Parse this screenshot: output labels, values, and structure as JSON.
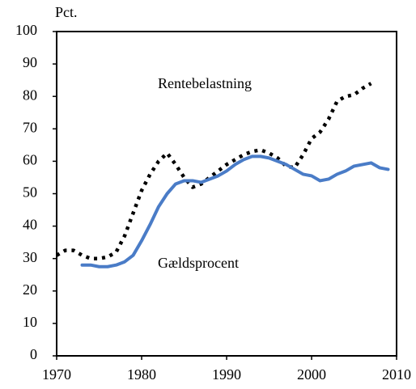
{
  "chart_data": {
    "type": "line",
    "y_label": "Pct.",
    "annotations": [
      "Rentebelastning",
      "Gældsprocent"
    ],
    "x": [
      1970,
      1971,
      1972,
      1973,
      1974,
      1975,
      1976,
      1977,
      1978,
      1979,
      1980,
      1981,
      1982,
      1983,
      1984,
      1985,
      1986,
      1987,
      1988,
      1989,
      1990,
      1991,
      1992,
      1993,
      1994,
      1995,
      1996,
      1997,
      1998,
      1999,
      2000,
      2001,
      2002,
      2003,
      2004,
      2005,
      2006,
      2007,
      2008,
      2009
    ],
    "series": [
      {
        "name": "Rentebelastning",
        "color": "#000000",
        "style": "dotted",
        "values": [
          31,
          32.5,
          32.5,
          31,
          30,
          30,
          30.5,
          32,
          37,
          44,
          51,
          56,
          60,
          62.5,
          59,
          55,
          52,
          53,
          55,
          57,
          59,
          60.5,
          62,
          63,
          63.5,
          62.5,
          61,
          58.5,
          58,
          62,
          67,
          69,
          73,
          78.5,
          80,
          80.5,
          82.5,
          84,
          null,
          null
        ]
      },
      {
        "name": "Gældsprocent",
        "color": "#4a7cc7",
        "style": "solid",
        "values": [
          null,
          null,
          null,
          28,
          28,
          27.5,
          27.5,
          28,
          29,
          31,
          35.5,
          40.5,
          46,
          50,
          53,
          54,
          54,
          53.5,
          54.5,
          55.5,
          57,
          59,
          60.5,
          61.5,
          61.5,
          61,
          60,
          59,
          57.5,
          56,
          55.5,
          54,
          54.5,
          56,
          57,
          58.5,
          59,
          59.5,
          58,
          57.5
        ]
      }
    ],
    "xlim": [
      1970,
      2010
    ],
    "xticks": [
      1970,
      1980,
      1990,
      2000,
      2010
    ],
    "ylim": [
      0,
      100
    ],
    "yticks": [
      0,
      10,
      20,
      30,
      40,
      50,
      60,
      70,
      80,
      90,
      100
    ],
    "grid": false
  }
}
